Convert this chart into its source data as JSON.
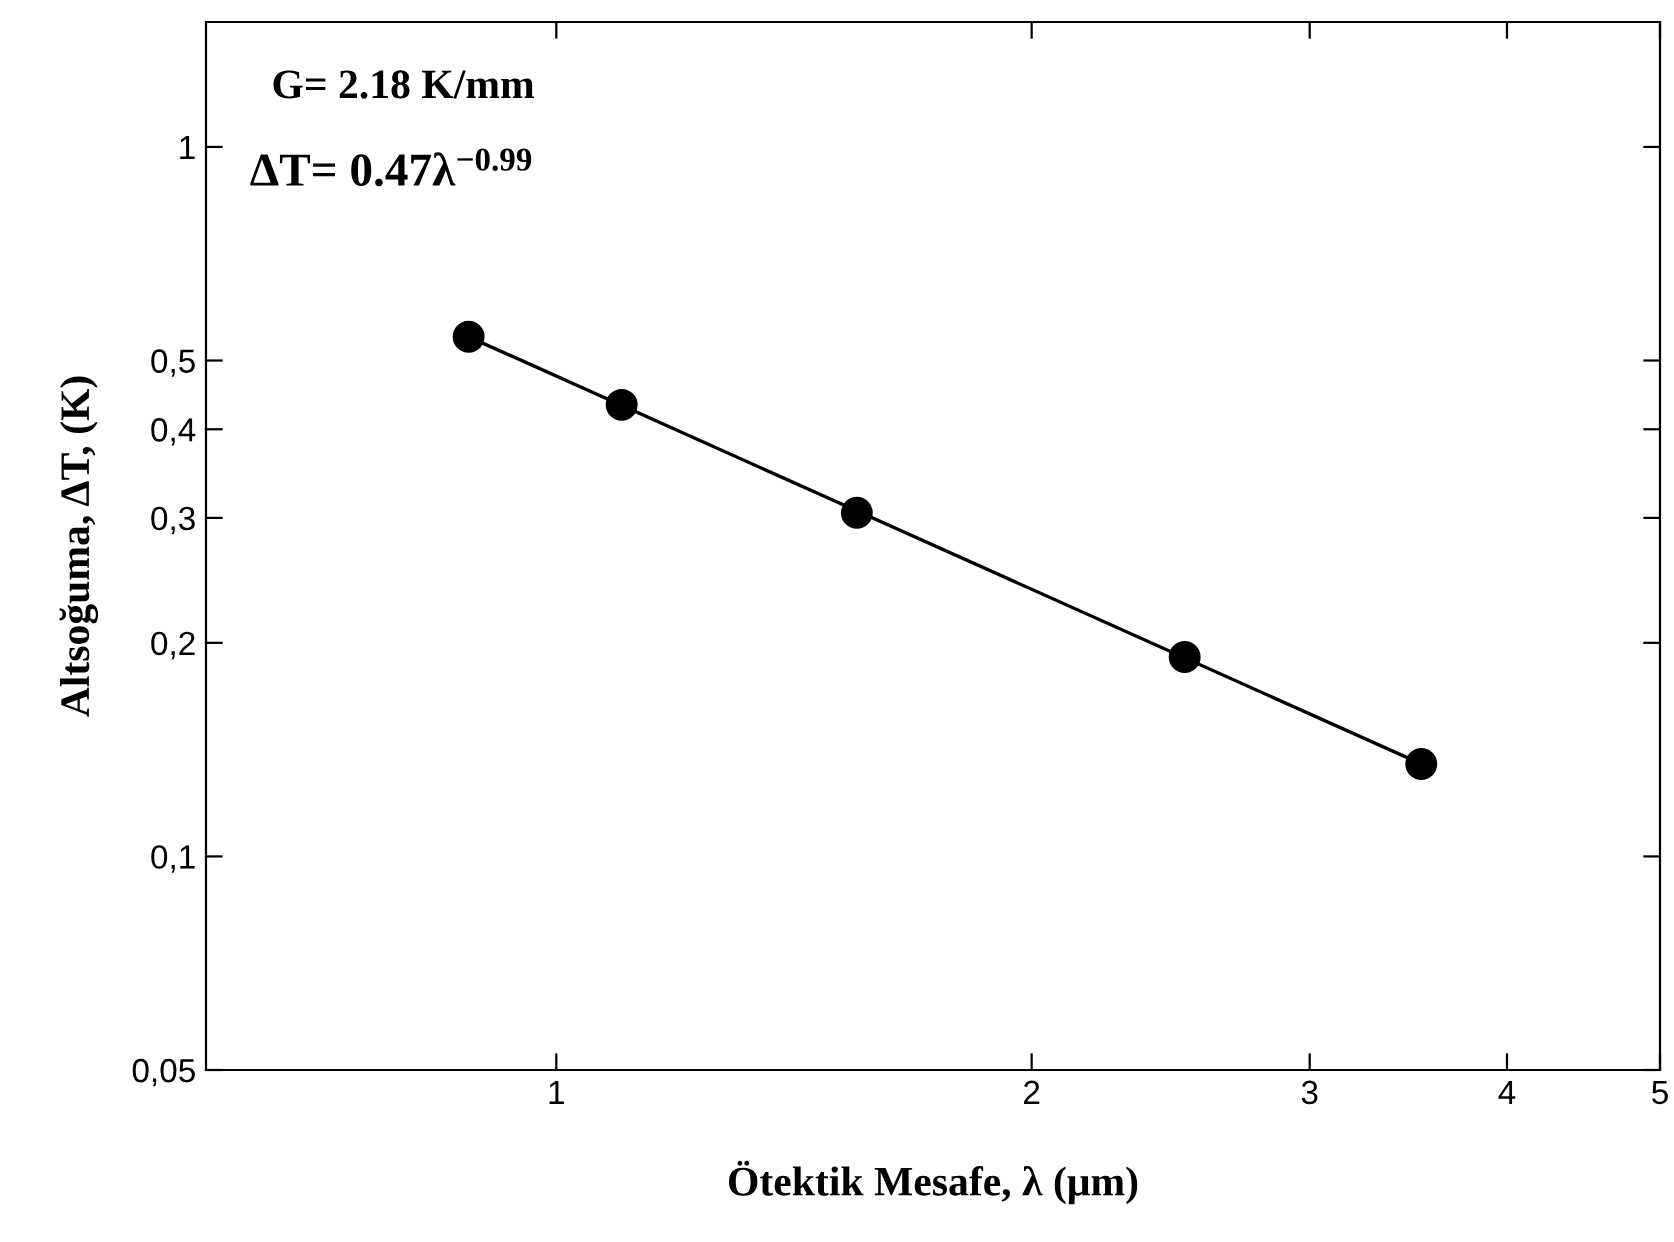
{
  "chart_data": {
    "type": "scatter",
    "xlabel": "Ötektik Mesafe, λ (μm)",
    "ylabel": "Altsoğuma, ΔT, (K)",
    "annotations": [
      "G= 2.18 K/mm",
      "ΔT= 0.47λ$^{−0.99}$"
    ],
    "log": "xy",
    "grid": false,
    "xlim": [
      0.6,
      5
    ],
    "ylim": [
      0.05,
      1.5
    ],
    "xticks": [
      1,
      2,
      3,
      4,
      5
    ],
    "yticks": [
      {
        "value": 0.05,
        "label": "0,05"
      },
      {
        "value": 0.1,
        "label": "0,1"
      },
      {
        "value": 0.2,
        "label": "0,2"
      },
      {
        "value": 0.3,
        "label": "0,3"
      },
      {
        "value": 0.4,
        "label": "0,4"
      },
      {
        "value": 0.5,
        "label": "0,5"
      },
      1
    ],
    "series": [
      {
        "marker": "circle",
        "color": "#000000",
        "x": [
          0.88,
          1.1,
          1.55,
          2.5,
          3.53
        ],
        "values": [
          0.54,
          0.433,
          0.305,
          0.191,
          0.135
        ]
      },
      {
        "type": "line",
        "marker": "none",
        "color": "#000000",
        "x": [
          0.88,
          3.53
        ],
        "values": [
          0.54,
          0.135
        ]
      }
    ]
  }
}
